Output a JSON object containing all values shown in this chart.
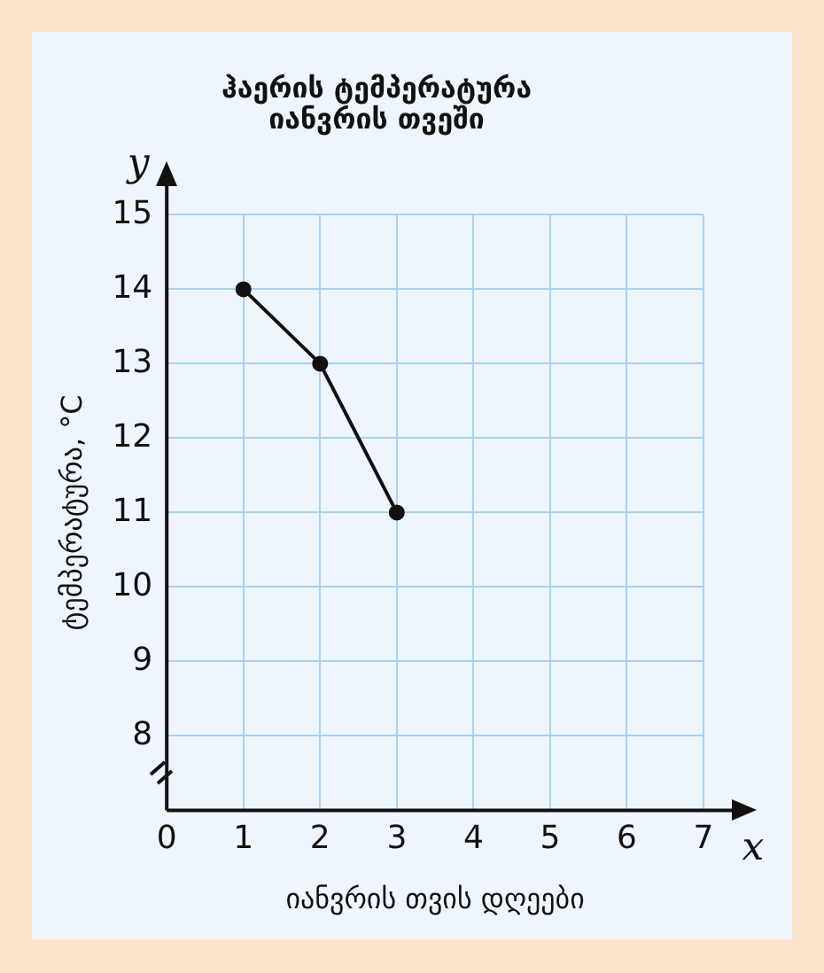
{
  "chart_data": {
    "type": "line",
    "title": "ჰაერის ტემპერატურა\nიანვრის თვეში",
    "xlabel": "იანვრის თვის დღეები",
    "ylabel": "ტემპერატურა, °C",
    "annotations": [
      "x",
      "y"
    ],
    "x": [
      1,
      2,
      3
    ],
    "series": [
      {
        "color": "#111111",
        "values": [
          14,
          13,
          11
        ]
      }
    ],
    "xlim": [
      0,
      7
    ],
    "xticks": [
      0,
      1,
      2,
      3,
      4,
      5,
      6,
      7
    ],
    "ylim": [
      7,
      15
    ],
    "yticks": [
      {
        "value": 7,
        "label": null
      },
      8,
      9,
      10,
      11,
      12,
      13,
      14,
      15
    ],
    "grid": true,
    "legend": false,
    "marker": "circle",
    "line_style": "solid"
  }
}
